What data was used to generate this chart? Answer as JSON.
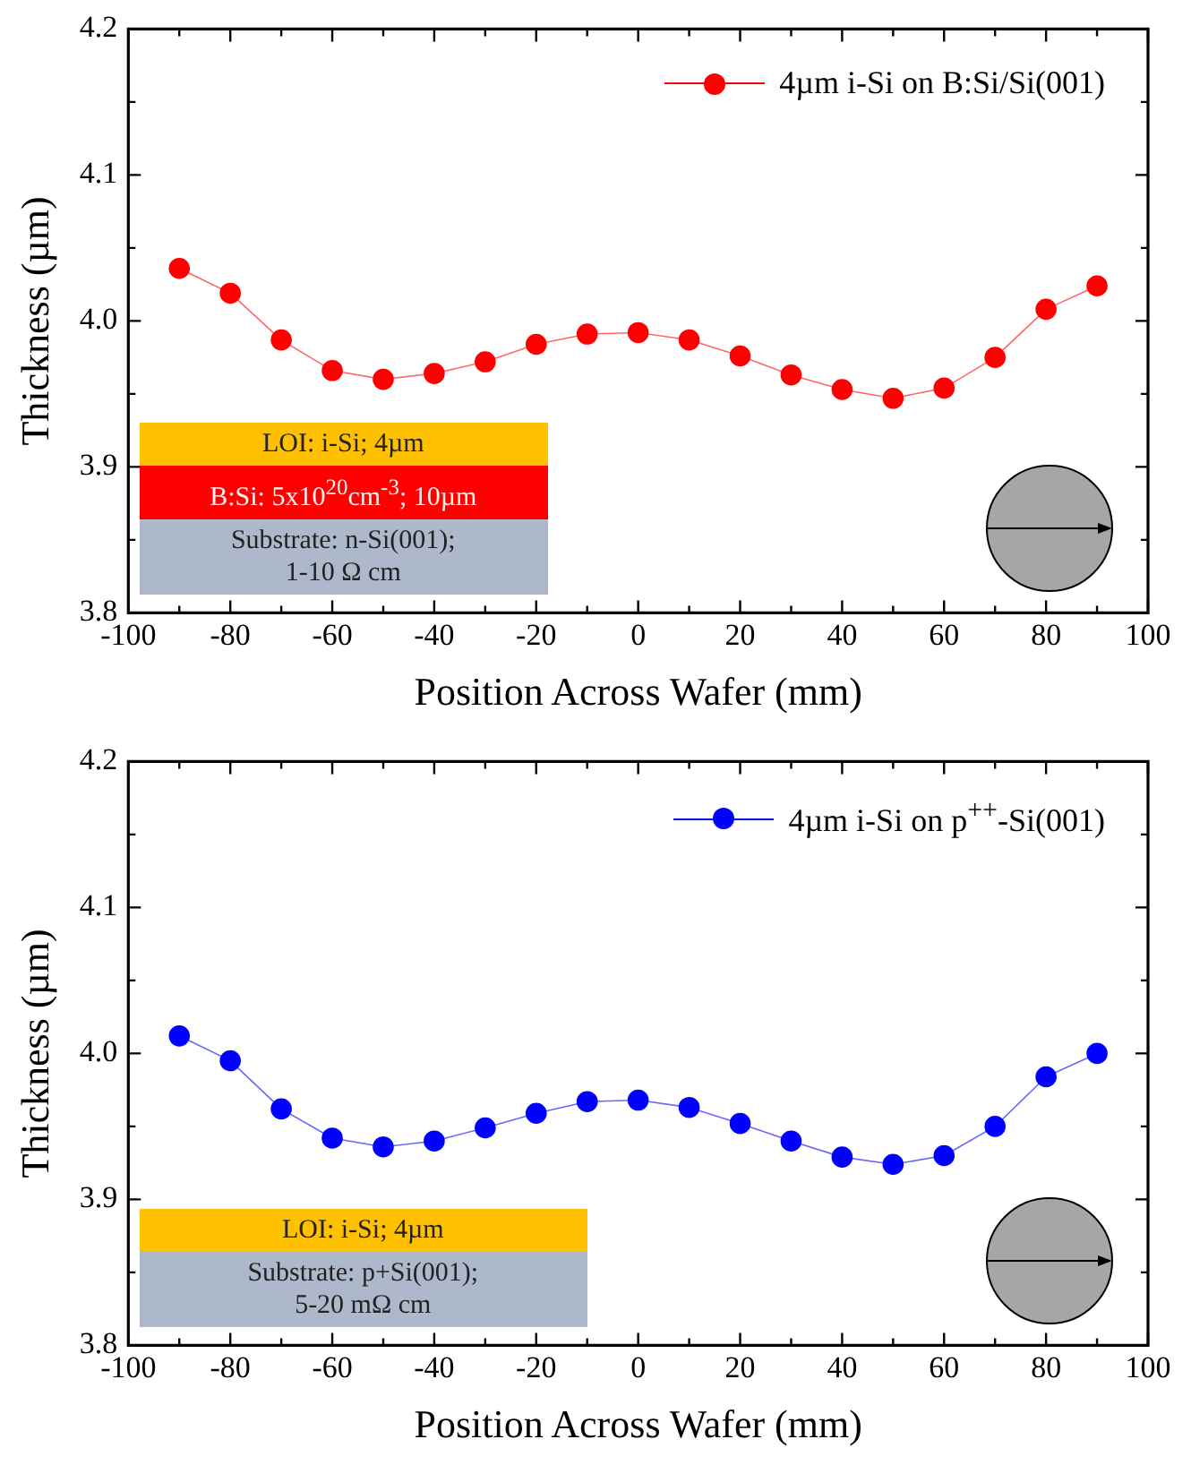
{
  "chart_data": [
    {
      "type": "line",
      "xlabel": "Position Across Wafer (mm)",
      "ylabel": "Thickness (µm)",
      "x": [
        -90,
        -80,
        -70,
        -60,
        -50,
        -40,
        -30,
        -20,
        -10,
        0,
        10,
        20,
        30,
        40,
        50,
        60,
        70,
        80,
        90
      ],
      "series": [
        {
          "name": "4µm i-Si on B:Si/Si(001)",
          "color": "#ff0000",
          "values": [
            4.036,
            4.019,
            3.987,
            3.966,
            3.96,
            3.964,
            3.972,
            3.984,
            3.991,
            3.992,
            3.987,
            3.976,
            3.963,
            3.953,
            3.947,
            3.954,
            3.975,
            4.008,
            4.024
          ]
        }
      ],
      "xlim": [
        -100,
        100
      ],
      "xticks": [
        -100,
        -80,
        -60,
        -40,
        -20,
        0,
        20,
        40,
        60,
        80,
        100
      ],
      "ylim": [
        3.8,
        4.2
      ],
      "yticks": [
        3.8,
        3.9,
        {
          "value": 4,
          "label": "4.0"
        },
        4.1,
        4.2
      ],
      "legend": "top right",
      "marker": "circle",
      "grid": false,
      "annotations": [
        "LOI: i-Si; 4µm",
        "B:Si: 5x10$^{20}$cm$^{-3}$; 10µm",
        "Substrate: n-Si(001);\n1-10 Ω cm"
      ]
    },
    {
      "type": "line",
      "xlabel": "Position Across Wafer (mm)",
      "ylabel": "Thickness (µm)",
      "x": [
        -90,
        -80,
        -70,
        -60,
        -50,
        -40,
        -30,
        -20,
        -10,
        0,
        10,
        20,
        30,
        40,
        50,
        60,
        70,
        80,
        90
      ],
      "series": [
        {
          "name": "4µm i-Si on p$^{++}$-Si(001)",
          "color": "#0000ff",
          "values": [
            4.012,
            3.995,
            3.962,
            3.942,
            3.936,
            3.94,
            3.949,
            3.959,
            3.967,
            3.968,
            3.963,
            3.952,
            3.94,
            3.929,
            3.924,
            3.93,
            3.95,
            3.984,
            4.0
          ]
        }
      ],
      "xlim": [
        -100,
        100
      ],
      "xticks": [
        -100,
        -80,
        -60,
        -40,
        -20,
        0,
        20,
        40,
        60,
        80,
        100
      ],
      "ylim": [
        3.8,
        4.2
      ],
      "yticks": [
        3.8,
        3.9,
        {
          "value": 4,
          "label": "4.0"
        },
        4.1,
        4.2
      ],
      "legend": "top right",
      "marker": "circle",
      "grid": false,
      "annotations": [
        "LOI: i-Si; 4µm",
        "Substrate: p+Si(001);\n5-20 mΩ cm"
      ]
    }
  ]
}
